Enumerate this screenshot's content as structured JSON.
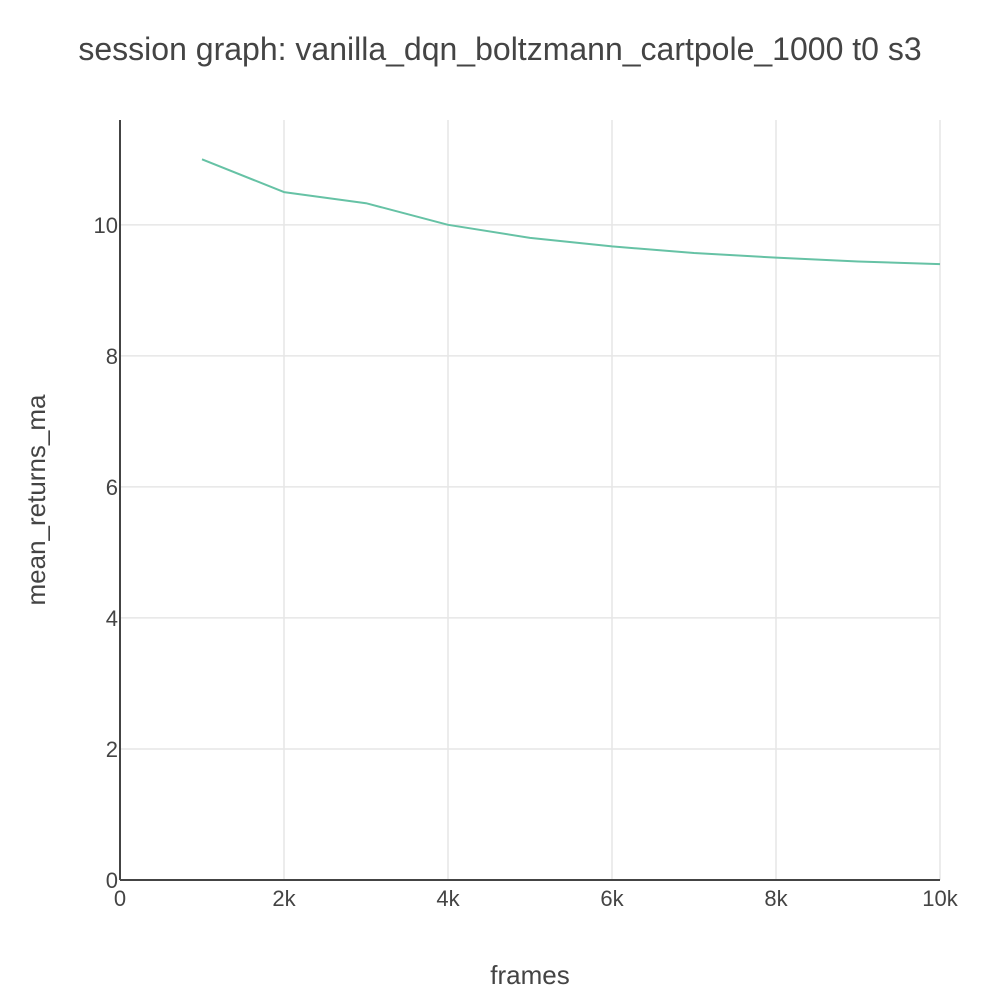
{
  "chart_data": {
    "type": "line",
    "title": "session graph: vanilla_dqn_boltzmann_cartpole_1000 t0 s3",
    "xlabel": "frames",
    "ylabel": "mean_returns_ma",
    "xlim": [
      0,
      10000
    ],
    "ylim": [
      0,
      11.6
    ],
    "x_ticks": [
      {
        "value": 0,
        "label": "0"
      },
      {
        "value": 2000,
        "label": "2k"
      },
      {
        "value": 4000,
        "label": "4k"
      },
      {
        "value": 6000,
        "label": "6k"
      },
      {
        "value": 8000,
        "label": "8k"
      },
      {
        "value": 10000,
        "label": "10k"
      }
    ],
    "y_ticks": [
      {
        "value": 0,
        "label": "0"
      },
      {
        "value": 2,
        "label": "2"
      },
      {
        "value": 4,
        "label": "4"
      },
      {
        "value": 6,
        "label": "6"
      },
      {
        "value": 8,
        "label": "8"
      },
      {
        "value": 10,
        "label": "10"
      }
    ],
    "grid": true,
    "legend": "none",
    "series": [
      {
        "color": "#66c2a5",
        "x": [
          1000,
          2000,
          3000,
          4000,
          5000,
          6000,
          7000,
          8000,
          9000,
          10000
        ],
        "y": [
          11.0,
          10.5,
          10.33,
          10.0,
          9.8,
          9.67,
          9.57,
          9.5,
          9.44,
          9.4
        ]
      }
    ]
  }
}
